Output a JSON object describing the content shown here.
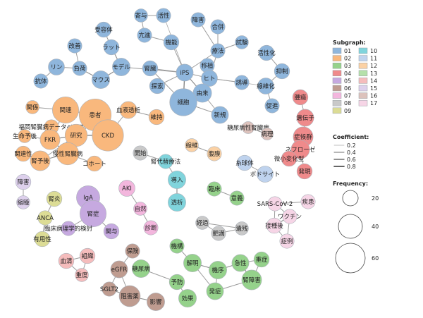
{
  "legend": {
    "subgraph_title": "Subgraph:",
    "coefficient_title": "Coefficient:",
    "frequency_title": "Frequency:",
    "subgraphs": [
      {
        "label": "01",
        "color": "#8fb6dc"
      },
      {
        "label": "02",
        "color": "#f9b87d"
      },
      {
        "label": "03",
        "color": "#95d28b"
      },
      {
        "label": "04",
        "color": "#ef8a8b"
      },
      {
        "label": "05",
        "color": "#c6a9e0"
      },
      {
        "label": "06",
        "color": "#bf9c90"
      },
      {
        "label": "07",
        "color": "#f3b6dd"
      },
      {
        "label": "08",
        "color": "#c9c9c9"
      },
      {
        "label": "09",
        "color": "#dcdc95"
      },
      {
        "label": "10",
        "color": "#80d4dc"
      },
      {
        "label": "11",
        "color": "#bfd3ee"
      },
      {
        "label": "12",
        "color": "#fbd1a4"
      },
      {
        "label": "13",
        "color": "#b5e0aa"
      },
      {
        "label": "14",
        "color": "#f5bcbc"
      },
      {
        "label": "15",
        "color": "#ddd0ec"
      },
      {
        "label": "16",
        "color": "#dcc2bc"
      },
      {
        "label": "17",
        "color": "#f6d5e6"
      }
    ],
    "coefficients": [
      "0.2",
      "0.4",
      "0.6",
      "0.8"
    ],
    "frequencies": [
      "20",
      "40",
      "60"
    ]
  },
  "nodes": [
    {
      "id": "n1",
      "label": "受容体",
      "g": "01",
      "f": 6,
      "lp": "c"
    },
    {
      "id": "n2",
      "label": "改善",
      "g": "01",
      "f": 5,
      "lp": "c"
    },
    {
      "id": "n3",
      "label": "ラット",
      "g": "01",
      "f": 6,
      "lp": "c"
    },
    {
      "id": "n4",
      "label": "リン",
      "g": "01",
      "f": 7,
      "lp": "c"
    },
    {
      "id": "n5",
      "label": "負荷",
      "g": "01",
      "f": 5,
      "lp": "c"
    },
    {
      "id": "n6",
      "label": "モデル",
      "g": "01",
      "f": 9,
      "lp": "c"
    },
    {
      "id": "n7",
      "label": "抗体",
      "g": "01",
      "f": 5,
      "lp": "c"
    },
    {
      "id": "n8",
      "label": "マウス",
      "g": "01",
      "f": 9,
      "lp": "c"
    },
    {
      "id": "n9",
      "label": "寄与",
      "g": "01",
      "f": 4,
      "lp": "c"
    },
    {
      "id": "n10",
      "label": "活性",
      "g": "01",
      "f": 5,
      "lp": "c"
    },
    {
      "id": "n11",
      "label": "亢進",
      "g": "01",
      "f": 5,
      "lp": "c"
    },
    {
      "id": "n12",
      "label": "機能",
      "g": "01",
      "f": 6,
      "lp": "c"
    },
    {
      "id": "n13",
      "label": "障害",
      "g": "01",
      "f": 5,
      "lp": "c"
    },
    {
      "id": "n14",
      "label": "合併",
      "g": "01",
      "f": 5,
      "lp": "c"
    },
    {
      "id": "n15",
      "label": "試験",
      "g": "01",
      "f": 4,
      "lp": "c"
    },
    {
      "id": "n16",
      "label": "療法",
      "g": "01",
      "f": 5,
      "lp": "c"
    },
    {
      "id": "n17",
      "label": "活性化",
      "g": "01",
      "f": 6,
      "lp": "c"
    },
    {
      "id": "n18",
      "label": "抑制",
      "g": "01",
      "f": 6,
      "lp": "c"
    },
    {
      "id": "n19",
      "label": "線維化",
      "g": "01",
      "f": 7,
      "lp": "c"
    },
    {
      "id": "n20",
      "label": "促進",
      "g": "01",
      "f": 5,
      "lp": "c"
    },
    {
      "id": "n21",
      "label": "移植",
      "g": "01",
      "f": 5,
      "lp": "c"
    },
    {
      "id": "n22",
      "label": "iPS",
      "g": "01",
      "f": 8,
      "lp": "c"
    },
    {
      "id": "n23",
      "label": "腎臓",
      "g": "01",
      "f": 6,
      "lp": "c"
    },
    {
      "id": "n24",
      "label": "ヒト",
      "g": "01",
      "f": 7,
      "lp": "c"
    },
    {
      "id": "n25",
      "label": "誘導",
      "g": "01",
      "f": 5,
      "lp": "c"
    },
    {
      "id": "n26",
      "label": "探索",
      "g": "01",
      "f": 6,
      "lp": "c"
    },
    {
      "id": "n27",
      "label": "由来",
      "g": "01",
      "f": 10,
      "lp": "c"
    },
    {
      "id": "n28",
      "label": "細胞",
      "g": "01",
      "f": 26,
      "lp": "c"
    },
    {
      "id": "n29",
      "label": "新規",
      "g": "01",
      "f": 8,
      "lp": "c"
    },
    {
      "id": "n30",
      "label": "関係",
      "g": "02",
      "f": 4,
      "lp": "c"
    },
    {
      "id": "n31",
      "label": "関連",
      "g": "02",
      "f": 24,
      "lp": "c"
    },
    {
      "id": "n32",
      "label": "患者",
      "g": "02",
      "f": 38,
      "lp": "c"
    },
    {
      "id": "n33",
      "label": "福岡腎臓病データベース",
      "g": "02",
      "f": 5,
      "lp": "c"
    },
    {
      "id": "n34",
      "label": "生命予後",
      "g": "02",
      "f": 4,
      "lp": "c"
    },
    {
      "id": "n35",
      "label": "FKR",
      "g": "02",
      "f": 12,
      "lp": "c"
    },
    {
      "id": "n36",
      "label": "研究",
      "g": "02",
      "f": 16,
      "lp": "c"
    },
    {
      "id": "n37",
      "label": "CKD",
      "g": "02",
      "f": 36,
      "lp": "c"
    },
    {
      "id": "n38",
      "label": "関連性",
      "g": "02",
      "f": 6,
      "lp": "c"
    },
    {
      "id": "n39",
      "label": "慢性腎臓病",
      "g": "02",
      "f": 16,
      "lp": "c"
    },
    {
      "id": "n40",
      "label": "腎予後",
      "g": "02",
      "f": 12,
      "lp": "c"
    },
    {
      "id": "n41",
      "label": "コホート",
      "g": "02",
      "f": 6,
      "lp": "c"
    },
    {
      "id": "n42",
      "label": "血液透析",
      "g": "02",
      "f": 8,
      "lp": "c"
    },
    {
      "id": "n43",
      "label": "維持",
      "g": "02",
      "f": 6,
      "lp": "c"
    },
    {
      "id": "n44",
      "label": "臨床",
      "g": "03",
      "f": 5,
      "lp": "c"
    },
    {
      "id": "n45",
      "label": "意義",
      "g": "03",
      "f": 5,
      "lp": "c"
    },
    {
      "id": "n46",
      "label": "機構",
      "g": "03",
      "f": 5,
      "lp": "c"
    },
    {
      "id": "n47",
      "label": "解明",
      "g": "03",
      "f": 9,
      "lp": "c"
    },
    {
      "id": "n48",
      "label": "糖尿病",
      "g": "03",
      "f": 9,
      "lp": "c"
    },
    {
      "id": "n49",
      "label": "機序",
      "g": "03",
      "f": 9,
      "lp": "c"
    },
    {
      "id": "n50",
      "label": "急性",
      "g": "03",
      "f": 8,
      "lp": "c"
    },
    {
      "id": "n51",
      "label": "重症",
      "g": "03",
      "f": 6,
      "lp": "c"
    },
    {
      "id": "n52",
      "label": "腎障害",
      "g": "03",
      "f": 12,
      "lp": "c"
    },
    {
      "id": "n53",
      "label": "予防",
      "g": "03",
      "f": 6,
      "lp": "c"
    },
    {
      "id": "n54",
      "label": "効果",
      "g": "03",
      "f": 9,
      "lp": "c"
    },
    {
      "id": "n55",
      "label": "発症",
      "g": "03",
      "f": 8,
      "lp": "c"
    },
    {
      "id": "n56",
      "label": "腫瘍",
      "g": "04",
      "f": 6,
      "lp": "c"
    },
    {
      "id": "n57",
      "label": "遺伝子",
      "g": "04",
      "f": 8,
      "lp": "c"
    },
    {
      "id": "n58",
      "label": "症候群",
      "g": "04",
      "f": 12,
      "lp": "c"
    },
    {
      "id": "n59",
      "label": "ネフローゼ",
      "g": "04",
      "f": 10,
      "lp": "c"
    },
    {
      "id": "n60",
      "label": "微小変化型",
      "g": "04",
      "f": 6,
      "lp": "c"
    },
    {
      "id": "n61",
      "label": "発現",
      "g": "04",
      "f": 6,
      "lp": "c"
    },
    {
      "id": "n62",
      "label": "IgA",
      "g": "05",
      "f": 18,
      "lp": "c"
    },
    {
      "id": "n63",
      "label": "腎症",
      "g": "05",
      "f": 24,
      "lp": "c"
    },
    {
      "id": "n64",
      "label": "臨床病理学的検討",
      "g": "05",
      "f": 5,
      "lp": "c"
    },
    {
      "id": "n65",
      "label": "関与",
      "g": "05",
      "f": 6,
      "lp": "c"
    },
    {
      "id": "n66",
      "label": "保険",
      "g": "06",
      "f": 5,
      "lp": "c"
    },
    {
      "id": "n67",
      "label": "eGFR",
      "g": "06",
      "f": 8,
      "lp": "c"
    },
    {
      "id": "n68",
      "label": "SGLT2",
      "g": "06",
      "f": 5,
      "lp": "c"
    },
    {
      "id": "n69",
      "label": "阻害薬",
      "g": "06",
      "f": 14,
      "lp": "c"
    },
    {
      "id": "n70",
      "label": "影響",
      "g": "06",
      "f": 9,
      "lp": "c"
    },
    {
      "id": "n71",
      "label": "AKI",
      "g": "07",
      "f": 7,
      "lp": "c"
    },
    {
      "id": "n72",
      "label": "自然",
      "g": "07",
      "f": 4,
      "lp": "c"
    },
    {
      "id": "n73",
      "label": "診断",
      "g": "07",
      "f": 5,
      "lp": "c"
    },
    {
      "id": "n74",
      "label": "開始",
      "g": "08",
      "f": 5,
      "lp": "c"
    },
    {
      "id": "n75",
      "label": "経過",
      "g": "08",
      "f": 4,
      "lp": "c"
    },
    {
      "id": "n76",
      "label": "肥満",
      "g": "08",
      "f": 5,
      "lp": "c"
    },
    {
      "id": "n77",
      "label": "遺残",
      "g": "08",
      "f": 4,
      "lp": "c"
    },
    {
      "id": "n78",
      "label": "腎炎",
      "g": "09",
      "f": 6,
      "lp": "c"
    },
    {
      "id": "n79",
      "label": "ANCA",
      "g": "09",
      "f": 5,
      "lp": "c"
    },
    {
      "id": "n80",
      "label": "有用性",
      "g": "09",
      "f": 6,
      "lp": "c"
    },
    {
      "id": "n81",
      "label": "腎代替療法",
      "g": "10",
      "f": 5,
      "lp": "c"
    },
    {
      "id": "n82",
      "label": "導入",
      "g": "10",
      "f": 9,
      "lp": "c"
    },
    {
      "id": "n83",
      "label": "透析",
      "g": "10",
      "f": 9,
      "lp": "c"
    },
    {
      "id": "n84",
      "label": "糸球体",
      "g": "11",
      "f": 6,
      "lp": "c"
    },
    {
      "id": "n85",
      "label": "ポドサイト",
      "g": "11",
      "f": 7,
      "lp": "c"
    },
    {
      "id": "n86",
      "label": "線維",
      "g": "12",
      "f": 4,
      "lp": "c"
    },
    {
      "id": "n87",
      "label": "腹膜",
      "g": "12",
      "f": 5,
      "lp": "c"
    },
    {
      "id": "n88",
      "label": "障害",
      "g": "15",
      "f": 6,
      "lp": "c"
    },
    {
      "id": "n89",
      "label": "縮瞳",
      "g": "15",
      "f": 4,
      "lp": "c"
    },
    {
      "id": "n90",
      "label": "血清",
      "g": "14",
      "f": 6,
      "lp": "c"
    },
    {
      "id": "n91",
      "label": "組織",
      "g": "14",
      "f": 6,
      "lp": "c"
    },
    {
      "id": "n92",
      "label": "重度",
      "g": "14",
      "f": 4,
      "lp": "c"
    },
    {
      "id": "n93",
      "label": "SARS-CoV-2",
      "g": "17",
      "f": 5,
      "lp": "c"
    },
    {
      "id": "n94",
      "label": "疾患",
      "g": "17",
      "f": 5,
      "lp": "c"
    },
    {
      "id": "n95",
      "label": "ワクチン",
      "g": "17",
      "f": 5,
      "lp": "c"
    },
    {
      "id": "n96",
      "label": "接種後",
      "g": "17",
      "f": 6,
      "lp": "c"
    },
    {
      "id": "n97",
      "label": "症例",
      "g": "17",
      "f": 5,
      "lp": "c"
    },
    {
      "id": "n98",
      "label": "糖尿病性腎臓病",
      "g": "16",
      "f": 3,
      "lp": "c"
    },
    {
      "id": "n99",
      "label": "病理",
      "g": "16",
      "f": 3,
      "lp": "c"
    }
  ],
  "edges": [
    [
      "n1",
      "n3",
      0.3
    ],
    [
      "n2",
      "n5",
      0.3
    ],
    [
      "n3",
      "n6",
      0.4
    ],
    [
      "n4",
      "n5",
      0.3
    ],
    [
      "n5",
      "n8",
      0.4
    ],
    [
      "n4",
      "n7",
      0.3
    ],
    [
      "n6",
      "n8",
      0.4
    ],
    [
      "n6",
      "n22",
      0.3
    ],
    [
      "n9",
      "n10",
      0.3
    ],
    [
      "n9",
      "n11",
      0.3
    ],
    [
      "n11",
      "n12",
      0.3
    ],
    [
      "n12",
      "n22",
      0.3
    ],
    [
      "n10",
      "n22",
      0.2
    ],
    [
      "n13",
      "n16",
      0.3
    ],
    [
      "n14",
      "n16",
      0.3
    ],
    [
      "n15",
      "n16",
      0.3
    ],
    [
      "n16",
      "n22",
      0.3
    ],
    [
      "n16",
      "n24",
      0.3
    ],
    [
      "n17",
      "n18",
      0.3
    ],
    [
      "n18",
      "n19",
      0.3
    ],
    [
      "n19",
      "n20",
      0.3
    ],
    [
      "n19",
      "n24",
      0.2
    ],
    [
      "n21",
      "n24",
      0.3
    ],
    [
      "n22",
      "n23",
      0.3
    ],
    [
      "n22",
      "n26",
      0.3
    ],
    [
      "n22",
      "n27",
      0.4
    ],
    [
      "n22",
      "n28",
      0.5
    ],
    [
      "n22",
      "n24",
      0.3
    ],
    [
      "n24",
      "n27",
      0.5
    ],
    [
      "n27",
      "n28",
      0.5
    ],
    [
      "n25",
      "n24",
      0.3
    ],
    [
      "n27",
      "n29",
      0.3
    ],
    [
      "n28",
      "n29",
      0.3
    ],
    [
      "n28",
      "n23",
      0.3
    ],
    [
      "n30",
      "n31",
      0.3
    ],
    [
      "n31",
      "n32",
      0.4
    ],
    [
      "n31",
      "n35",
      0.3
    ],
    [
      "n32",
      "n37",
      0.6
    ],
    [
      "n32",
      "n36",
      0.4
    ],
    [
      "n33",
      "n35",
      0.3
    ],
    [
      "n34",
      "n35",
      0.3
    ],
    [
      "n35",
      "n36",
      0.4
    ],
    [
      "n36",
      "n37",
      0.5
    ],
    [
      "n35",
      "n39",
      0.4
    ],
    [
      "n36",
      "n39",
      0.4
    ],
    [
      "n38",
      "n40",
      0.3
    ],
    [
      "n39",
      "n40",
      0.4
    ],
    [
      "n39",
      "n41",
      0.3
    ],
    [
      "n37",
      "n42",
      0.3
    ],
    [
      "n42",
      "n43",
      0.3
    ],
    [
      "n36",
      "n40",
      0.3
    ],
    [
      "n32",
      "n39",
      0.3
    ],
    [
      "n44",
      "n45",
      0.3
    ],
    [
      "n46",
      "n47",
      0.3
    ],
    [
      "n47",
      "n49",
      0.4
    ],
    [
      "n48",
      "n53",
      0.3
    ],
    [
      "n49",
      "n50",
      0.4
    ],
    [
      "n50",
      "n51",
      0.3
    ],
    [
      "n50",
      "n52",
      0.4
    ],
    [
      "n51",
      "n52",
      0.3
    ],
    [
      "n53",
      "n54",
      0.3
    ],
    [
      "n49",
      "n55",
      0.3
    ],
    [
      "n47",
      "n55",
      0.3
    ],
    [
      "n52",
      "n55",
      0.3
    ],
    [
      "n56",
      "n57",
      0.3
    ],
    [
      "n57",
      "n58",
      0.3
    ],
    [
      "n58",
      "n59",
      0.5
    ],
    [
      "n59",
      "n60",
      0.4
    ],
    [
      "n59",
      "n61",
      0.3
    ],
    [
      "n58",
      "n60",
      0.3
    ],
    [
      "n62",
      "n63",
      0.8
    ],
    [
      "n63",
      "n64",
      0.3
    ],
    [
      "n63",
      "n65",
      0.3
    ],
    [
      "n66",
      "n67",
      0.3
    ],
    [
      "n67",
      "n68",
      0.3
    ],
    [
      "n68",
      "n69",
      0.4
    ],
    [
      "n69",
      "n70",
      0.4
    ],
    [
      "n67",
      "n69",
      0.3
    ],
    [
      "n71",
      "n72",
      0.3
    ],
    [
      "n72",
      "n73",
      0.3
    ],
    [
      "n75",
      "n76",
      0.3
    ],
    [
      "n76",
      "n77",
      0.3
    ],
    [
      "n75",
      "n77",
      0.3
    ],
    [
      "n78",
      "n79",
      0.3
    ],
    [
      "n79",
      "n80",
      0.3
    ],
    [
      "n74",
      "n81",
      0.3
    ],
    [
      "n81",
      "n82",
      0.3
    ],
    [
      "n82",
      "n83",
      0.4
    ],
    [
      "n84",
      "n85",
      0.3
    ],
    [
      "n86",
      "n87",
      0.3
    ],
    [
      "n88",
      "n89",
      0.3
    ],
    [
      "n90",
      "n91",
      0.3
    ],
    [
      "n90",
      "n92",
      0.3
    ],
    [
      "n91",
      "n92",
      0.3
    ],
    [
      "n93",
      "n94",
      0.3
    ],
    [
      "n93",
      "n95",
      0.3
    ],
    [
      "n93",
      "n96",
      0.3
    ],
    [
      "n95",
      "n96",
      0.4
    ],
    [
      "n96",
      "n97",
      0.3
    ],
    [
      "n95",
      "n97",
      0.3
    ],
    [
      "n98",
      "n99",
      0.3
    ]
  ]
}
